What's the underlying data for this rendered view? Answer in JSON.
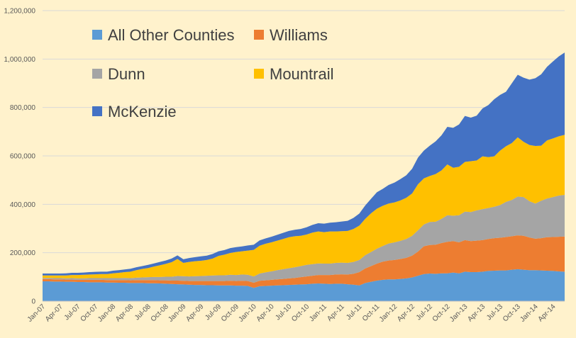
{
  "chart_data": {
    "type": "area",
    "stacked": true,
    "x": [
      "Jan-07",
      "Feb-07",
      "Mar-07",
      "Apr-07",
      "May-07",
      "Jun-07",
      "Jul-07",
      "Aug-07",
      "Sep-07",
      "Oct-07",
      "Nov-07",
      "Dec-07",
      "Jan-08",
      "Feb-08",
      "Mar-08",
      "Apr-08",
      "May-08",
      "Jun-08",
      "Jul-08",
      "Aug-08",
      "Sep-08",
      "Oct-08",
      "Nov-08",
      "Dec-08",
      "Jan-09",
      "Feb-09",
      "Mar-09",
      "Apr-09",
      "May-09",
      "Jun-09",
      "Jul-09",
      "Aug-09",
      "Sep-09",
      "Oct-09",
      "Nov-09",
      "Dec-09",
      "Jan-10",
      "Feb-10",
      "Mar-10",
      "Apr-10",
      "May-10",
      "Jun-10",
      "Jul-10",
      "Aug-10",
      "Sep-10",
      "Oct-10",
      "Nov-10",
      "Dec-10",
      "Jan-11",
      "Feb-11",
      "Mar-11",
      "Apr-11",
      "May-11",
      "Jun-11",
      "Jul-11",
      "Aug-11",
      "Sep-11",
      "Oct-11",
      "Nov-11",
      "Dec-11",
      "Jan-12",
      "Feb-12",
      "Mar-12",
      "Apr-12",
      "May-12",
      "Jun-12",
      "Jul-12",
      "Aug-12",
      "Sep-12",
      "Oct-12",
      "Nov-12",
      "Dec-12",
      "Jan-13",
      "Feb-13",
      "Mar-13",
      "Apr-13",
      "May-13",
      "Jun-13",
      "Jul-13",
      "Aug-13",
      "Sep-13",
      "Oct-13",
      "Nov-13",
      "Dec-13",
      "Jan-14",
      "Feb-14",
      "Mar-14",
      "Apr-14",
      "May-14",
      "Jun-14"
    ],
    "x_tick_labels": [
      "Jan-07",
      "Apr-07",
      "Jul-07",
      "Oct-07",
      "Jan-08",
      "Apr-08",
      "Jul-08",
      "Oct-08",
      "Jan-09",
      "Apr-09",
      "Jul-09",
      "Oct-09",
      "Jan-10",
      "Apr-10",
      "Jul-10",
      "Oct-10",
      "Jan-11",
      "Apr-11",
      "Jul-11",
      "Oct-11",
      "Jan-12",
      "Apr-12",
      "Jul-12",
      "Oct-12",
      "Jan-13",
      "Apr-13",
      "Jul-13",
      "Oct-13",
      "Jan-14",
      "Apr-14"
    ],
    "y_tick_labels": [
      "0",
      "200,000",
      "400,000",
      "600,000",
      "800,000",
      "1,000,000",
      "1,200,000"
    ],
    "ylim": [
      0,
      1200000
    ],
    "grid": true,
    "legend_position": "top-left",
    "series": [
      {
        "name": "All Other Counties",
        "color": "#5b9bd5",
        "values": [
          82000,
          82000,
          81000,
          81000,
          80000,
          80000,
          79000,
          79000,
          78000,
          78000,
          78000,
          77000,
          77000,
          76000,
          76000,
          75000,
          75000,
          75000,
          74000,
          74000,
          73000,
          72000,
          71000,
          70000,
          69000,
          68000,
          67000,
          67000,
          66000,
          66000,
          65000,
          65000,
          65000,
          64000,
          64000,
          63000,
          55000,
          62000,
          63000,
          64000,
          65000,
          66000,
          67000,
          68000,
          69000,
          70000,
          72000,
          73000,
          72000,
          71000,
          72000,
          72000,
          70000,
          68000,
          65000,
          75000,
          80000,
          85000,
          88000,
          90000,
          90000,
          92000,
          94000,
          98000,
          105000,
          112000,
          114000,
          113000,
          115000,
          115000,
          118000,
          115000,
          122000,
          120000,
          120000,
          122000,
          125000,
          126000,
          127000,
          127000,
          130000,
          132000,
          130000,
          128000,
          128000,
          127000,
          126000,
          125000,
          123000,
          122000
        ]
      },
      {
        "name": "Williams",
        "color": "#ed7d31",
        "values": [
          9000,
          9000,
          9000,
          9000,
          9000,
          9000,
          9000,
          9000,
          10000,
          10000,
          10000,
          10000,
          10000,
          11000,
          11000,
          11000,
          12000,
          12000,
          13000,
          13000,
          13000,
          14000,
          14000,
          15000,
          15000,
          15000,
          16000,
          16000,
          17000,
          17000,
          18000,
          18000,
          19000,
          19000,
          20000,
          20000,
          21000,
          22000,
          23000,
          24000,
          25000,
          26000,
          27000,
          28000,
          30000,
          32000,
          33000,
          35000,
          36000,
          37000,
          38000,
          39000,
          40000,
          45000,
          55000,
          60000,
          65000,
          70000,
          75000,
          78000,
          80000,
          82000,
          85000,
          90000,
          100000,
          115000,
          118000,
          120000,
          125000,
          130000,
          130000,
          128000,
          130000,
          128000,
          130000,
          130000,
          132000,
          134000,
          135000,
          138000,
          138000,
          140000,
          140000,
          135000,
          130000,
          133000,
          138000,
          140000,
          143000,
          145000
        ]
      },
      {
        "name": "Dunn",
        "color": "#a5a5a5",
        "values": [
          5000,
          5000,
          5000,
          5000,
          5000,
          6000,
          6000,
          6000,
          7000,
          7000,
          7000,
          8000,
          8000,
          8000,
          9000,
          9000,
          10000,
          11000,
          12000,
          13000,
          14000,
          15000,
          16000,
          19000,
          19000,
          19000,
          20000,
          21000,
          22000,
          23000,
          24000,
          24000,
          25000,
          25000,
          26000,
          26000,
          26000,
          30000,
          33000,
          35000,
          38000,
          40000,
          42000,
          44000,
          46000,
          48000,
          48000,
          48000,
          47000,
          47000,
          48000,
          48000,
          48000,
          49000,
          50000,
          55000,
          58000,
          62000,
          65000,
          70000,
          73000,
          75000,
          78000,
          82000,
          88000,
          90000,
          95000,
          95000,
          100000,
          110000,
          105000,
          112000,
          118000,
          120000,
          125000,
          128000,
          128000,
          130000,
          135000,
          145000,
          150000,
          160000,
          160000,
          150000,
          145000,
          155000,
          160000,
          165000,
          170000,
          172000
        ]
      },
      {
        "name": "Mountrail",
        "color": "#ffc000",
        "values": [
          10000,
          10000,
          11000,
          11000,
          12000,
          13000,
          14000,
          15000,
          15000,
          16000,
          17000,
          17000,
          20000,
          22000,
          24000,
          27000,
          31000,
          35000,
          38000,
          43000,
          48000,
          53000,
          60000,
          70000,
          55000,
          60000,
          62000,
          63000,
          65000,
          70000,
          80000,
          85000,
          90000,
          95000,
          96000,
          100000,
          110000,
          115000,
          118000,
          120000,
          122000,
          125000,
          128000,
          128000,
          125000,
          125000,
          130000,
          132000,
          130000,
          133000,
          130000,
          130000,
          132000,
          136000,
          142000,
          150000,
          160000,
          165000,
          166000,
          165000,
          165000,
          167000,
          170000,
          175000,
          190000,
          190000,
          190000,
          197000,
          200000,
          210000,
          198000,
          200000,
          205000,
          210000,
          206000,
          218000,
          210000,
          208000,
          225000,
          230000,
          235000,
          245000,
          228000,
          232000,
          238000,
          227000,
          240000,
          242000,
          245000,
          248000
        ]
      },
      {
        "name": "McKenzie",
        "color": "#4472c4",
        "values": [
          8000,
          8000,
          8000,
          8000,
          9000,
          9000,
          9000,
          9000,
          10000,
          10000,
          10000,
          10000,
          11000,
          11000,
          11000,
          12000,
          12000,
          12000,
          13000,
          13000,
          14000,
          14000,
          15000,
          15000,
          15000,
          16000,
          17000,
          18000,
          18000,
          19000,
          19000,
          19000,
          20000,
          20000,
          20000,
          21000,
          21000,
          22000,
          22000,
          23000,
          24000,
          25000,
          26000,
          27000,
          28000,
          30000,
          32000,
          34000,
          35000,
          36000,
          38000,
          40000,
          42000,
          46000,
          50000,
          55000,
          60000,
          68000,
          70000,
          77000,
          82000,
          88000,
          93000,
          102000,
          110000,
          115000,
          125000,
          135000,
          145000,
          155000,
          165000,
          175000,
          190000,
          180000,
          185000,
          198000,
          215000,
          236000,
          230000,
          225000,
          247000,
          258000,
          265000,
          270000,
          280000,
          295000,
          304000,
          318000,
          330000,
          340000
        ]
      }
    ]
  }
}
